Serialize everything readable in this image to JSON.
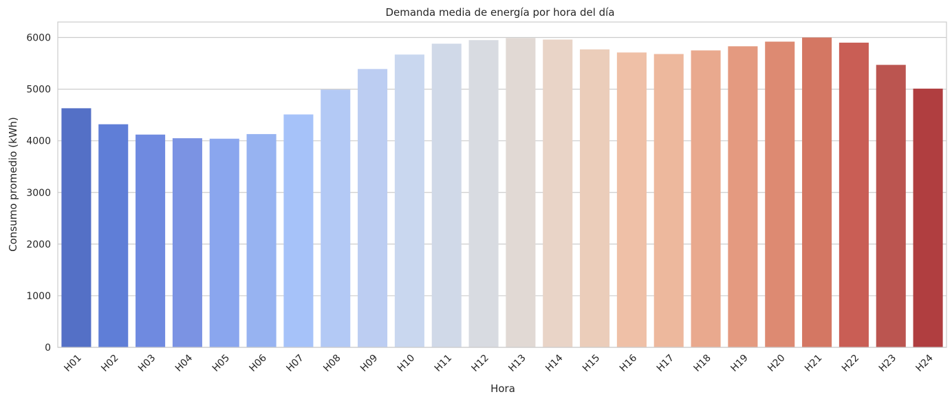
{
  "chart_data": {
    "type": "bar",
    "title": "Demanda media de energía por hora del día",
    "xlabel": "Hora",
    "ylabel": "Consumo promedio (kWh)",
    "ylim": [
      0,
      6300
    ],
    "yticks": [
      0,
      1000,
      2000,
      3000,
      4000,
      5000,
      6000
    ],
    "grid": "horizontal",
    "categories": [
      "H01",
      "H02",
      "H03",
      "H04",
      "H05",
      "H06",
      "H07",
      "H08",
      "H09",
      "H10",
      "H11",
      "H12",
      "H13",
      "H14",
      "H15",
      "H16",
      "H17",
      "H18",
      "H19",
      "H20",
      "H21",
      "H22",
      "H23",
      "H24"
    ],
    "values": [
      4630,
      4320,
      4120,
      4050,
      4040,
      4130,
      4510,
      4990,
      5390,
      5670,
      5880,
      5950,
      5990,
      5960,
      5770,
      5710,
      5680,
      5750,
      5830,
      5920,
      6000,
      5900,
      5470,
      5010
    ],
    "colors": [
      "#5470c6",
      "#5f7ed7",
      "#6f8ae0",
      "#7b93e3",
      "#8aa6ee",
      "#97b3f1",
      "#a6c2f9",
      "#b3c9f5",
      "#bccdf2",
      "#c9d7ef",
      "#d0d9e8",
      "#d8dbe1",
      "#e1d9d4",
      "#e9d4c7",
      "#ebcdba",
      "#efc0a7",
      "#edb89d",
      "#e9a98e",
      "#e49a80",
      "#dd8a72",
      "#d47763",
      "#c95e55",
      "#bb5550",
      "#b03e40"
    ]
  }
}
